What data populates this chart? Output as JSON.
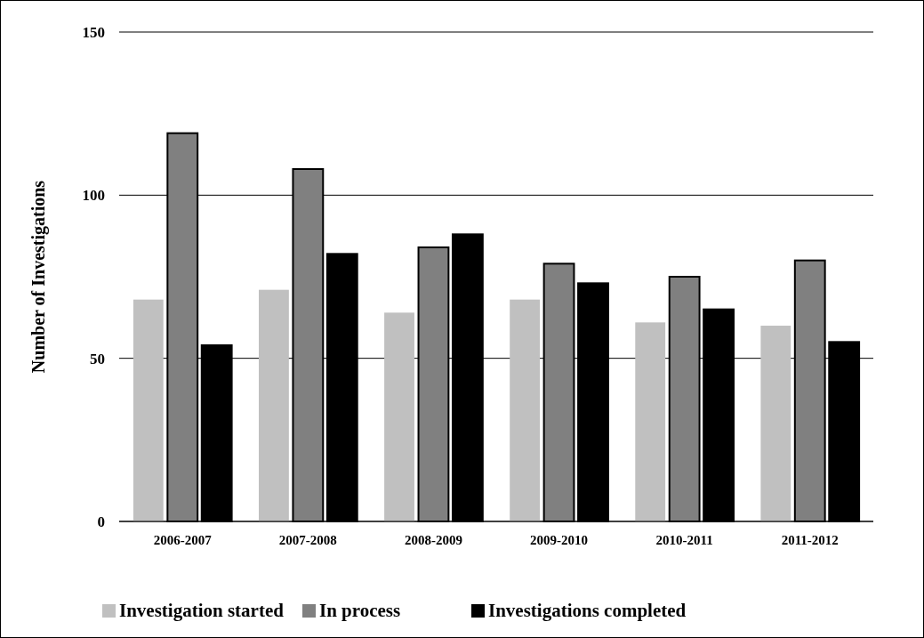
{
  "chart_data": {
    "type": "bar",
    "ylabel": "Number of Investigations",
    "categories": [
      "2006-2007",
      "2007-2008",
      "2008-2009",
      "2009-2010",
      "2010-2011",
      "2011-2012"
    ],
    "series": [
      {
        "name": "Investigation started",
        "color": "#c0c0c0",
        "values": [
          68,
          71,
          64,
          68,
          61,
          60
        ]
      },
      {
        "name": "In process",
        "color": "#808080",
        "values": [
          119,
          108,
          84,
          79,
          75,
          80
        ]
      },
      {
        "name": "Investigations completed",
        "color": "#000000",
        "values": [
          54,
          82,
          88,
          73,
          65,
          55
        ]
      }
    ],
    "ylim": [
      0,
      150
    ],
    "yticks": [
      0,
      50,
      100,
      150
    ],
    "grid": "y",
    "legend": "bottom"
  }
}
